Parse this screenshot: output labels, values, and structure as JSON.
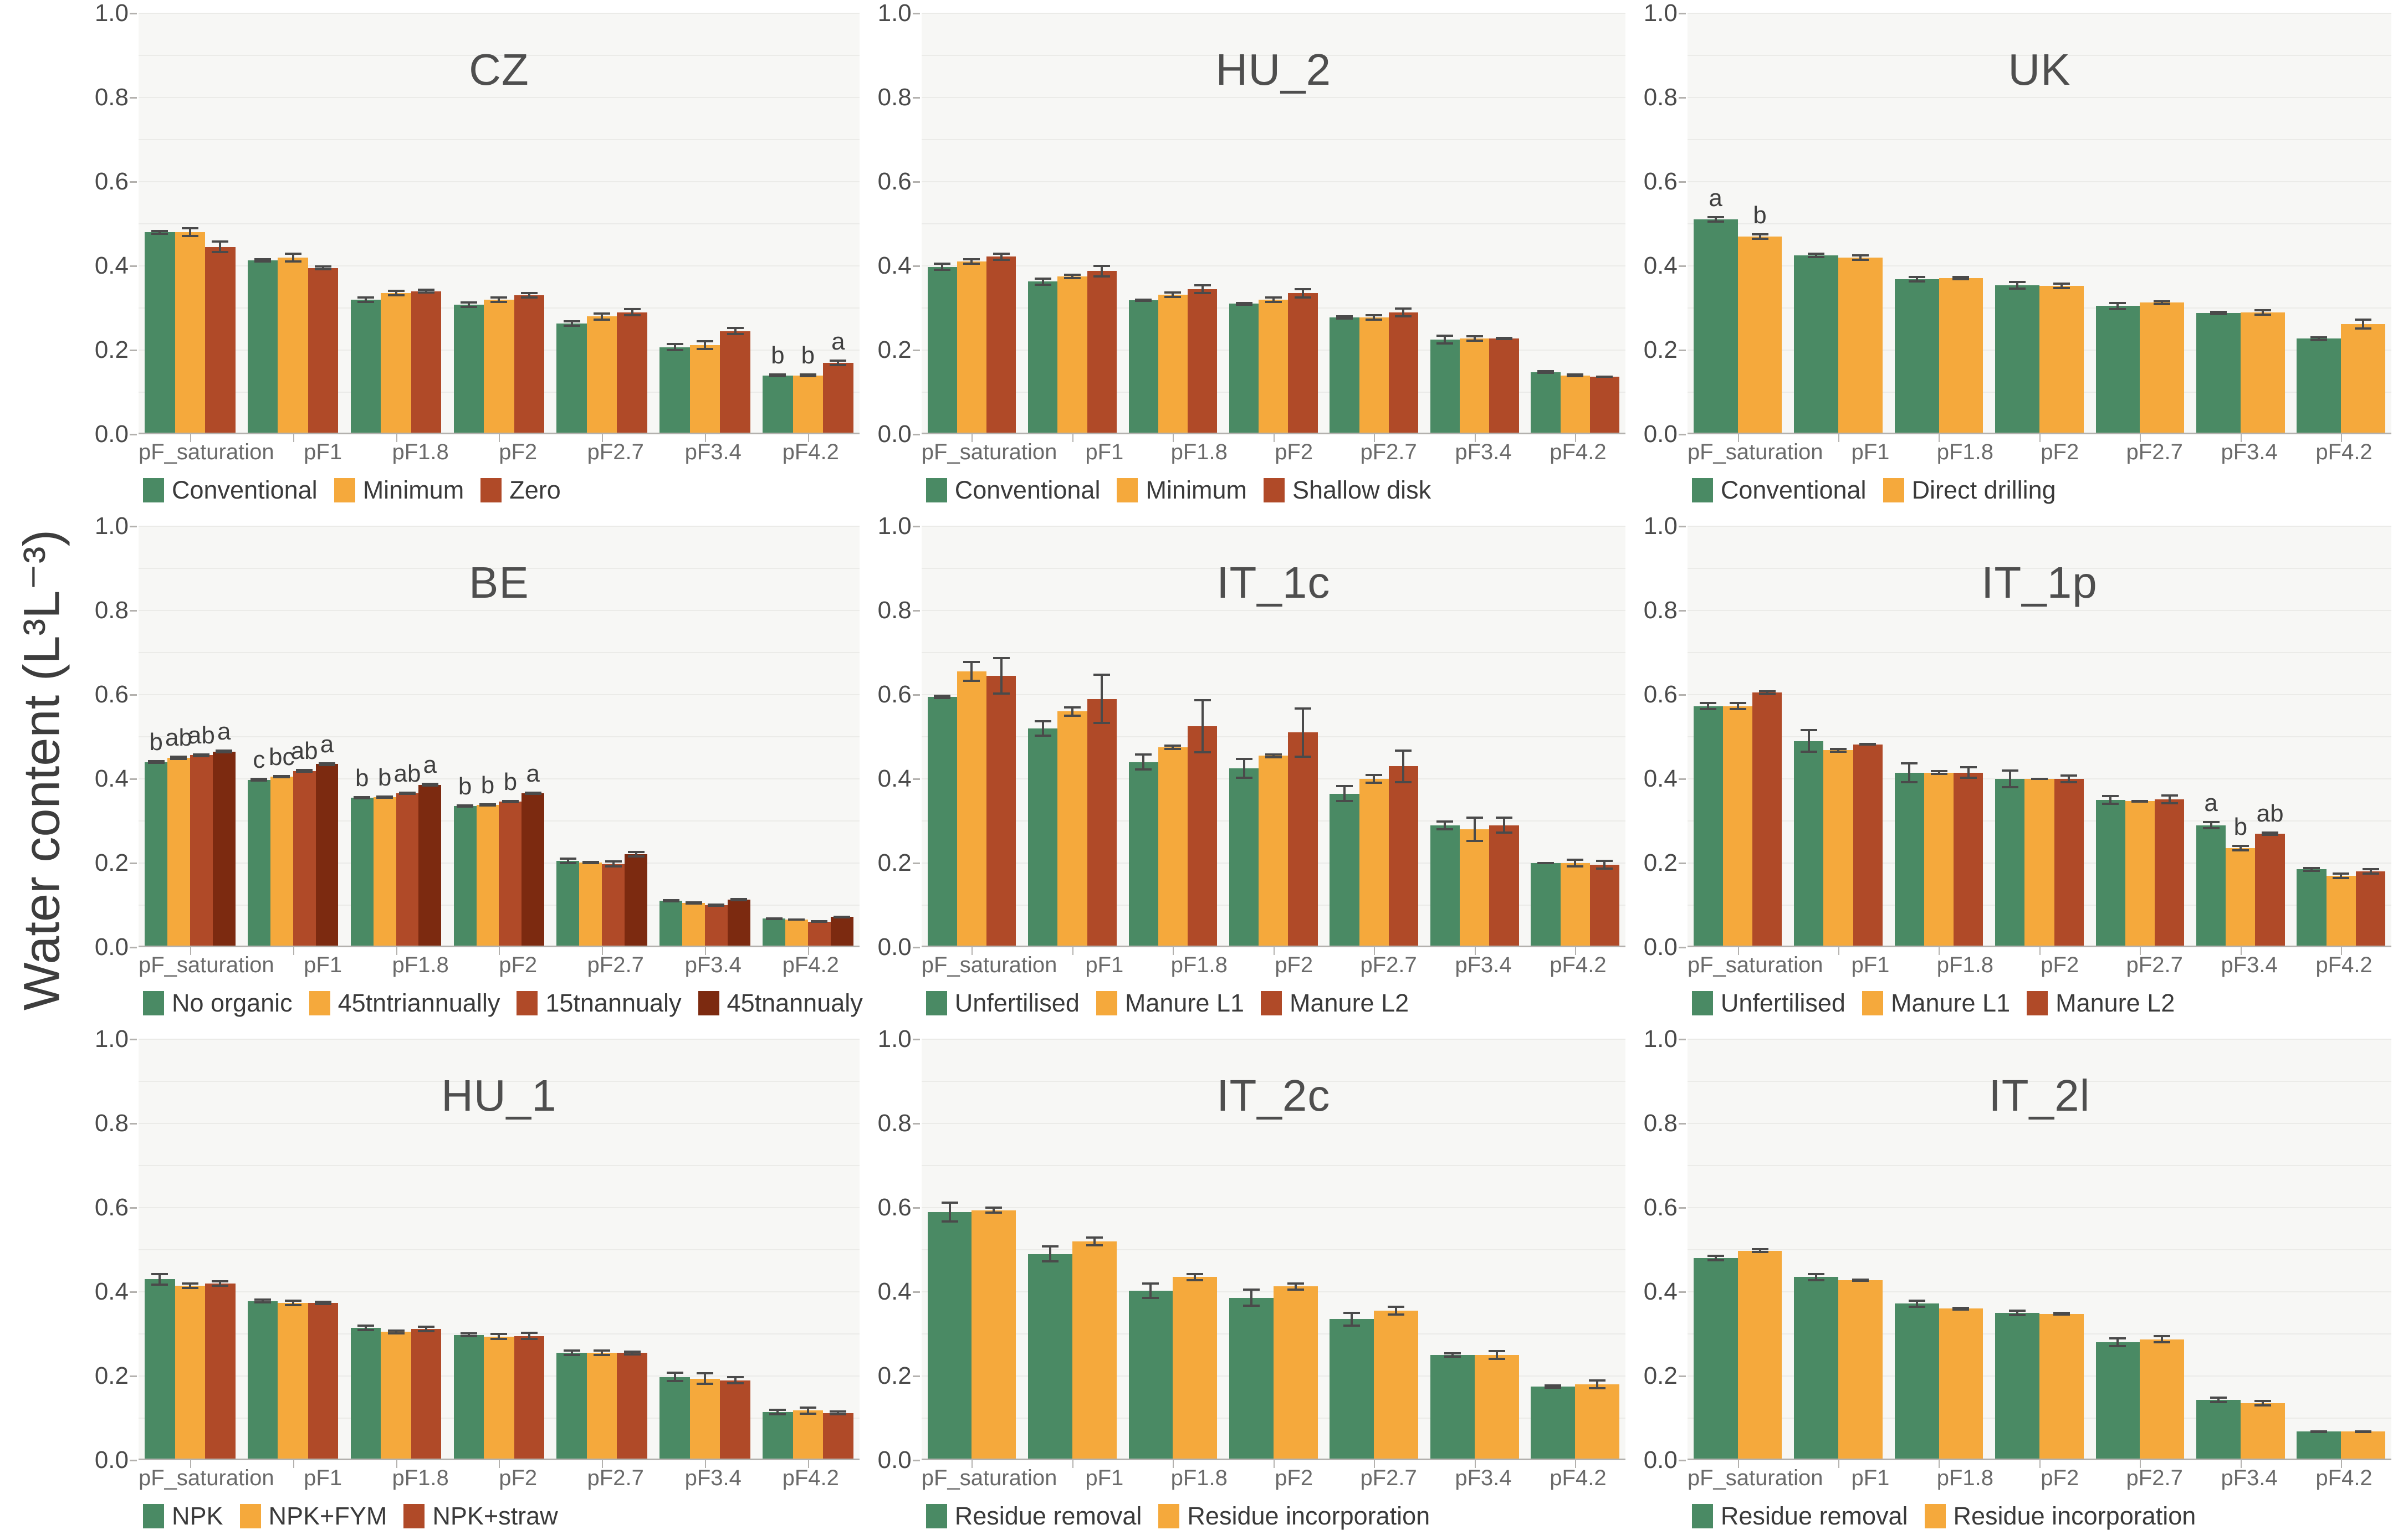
{
  "ylabel": "Water content (L³L⁻³)",
  "palette": {
    "green": "#4a8a64",
    "orange": "#f5a93c",
    "red": "#b04a28",
    "darkred": "#7c2a10"
  },
  "axis": {
    "yticks": [
      "1.0",
      "0.8",
      "0.6",
      "0.4",
      "0.2",
      "0.0"
    ],
    "ytick_values": [
      1.0,
      0.8,
      0.6,
      0.4,
      0.2,
      0.0
    ],
    "grid_step": 0.1
  },
  "chart_data": {
    "type": "bar",
    "categories": [
      "pF_saturation",
      "pF1",
      "pF1.8",
      "pF2",
      "pF2.7",
      "pF3.4",
      "pF4.2"
    ],
    "ylim": [
      0,
      1
    ],
    "ylabel": "Water content (L³L⁻³)",
    "grid": true,
    "legend_position": "bottom",
    "charts": [
      {
        "title": "CZ",
        "series": [
          {
            "name": "Conventional",
            "color": "green",
            "values": [
              0.48,
              0.413,
              0.32,
              0.308,
              0.263,
              0.207,
              0.14
            ],
            "errors": [
              0.006,
              0.005,
              0.008,
              0.008,
              0.008,
              0.01,
              0.005
            ]
          },
          {
            "name": "Minimum",
            "color": "orange",
            "values": [
              0.48,
              0.42,
              0.335,
              0.32,
              0.28,
              0.212,
              0.14
            ],
            "errors": [
              0.012,
              0.012,
              0.008,
              0.008,
              0.01,
              0.012,
              0.005
            ]
          },
          {
            "name": "Zero",
            "color": "red",
            "values": [
              0.445,
              0.395,
              0.34,
              0.33,
              0.29,
              0.245,
              0.17
            ],
            "errors": [
              0.015,
              0.006,
              0.006,
              0.008,
              0.01,
              0.01,
              0.008
            ]
          }
        ],
        "letters": [
          null,
          null,
          null,
          null,
          null,
          null,
          [
            "b",
            "b",
            "a"
          ]
        ]
      },
      {
        "title": "HU_2",
        "series": [
          {
            "name": "Conventional",
            "color": "green",
            "values": [
              0.398,
              0.363,
              0.318,
              0.31,
              0.278,
              0.225,
              0.148
            ],
            "errors": [
              0.01,
              0.01,
              0.004,
              0.005,
              0.005,
              0.012,
              0.005
            ]
          },
          {
            "name": "Minimum",
            "color": "orange",
            "values": [
              0.41,
              0.375,
              0.332,
              0.32,
              0.278,
              0.228,
              0.14
            ],
            "errors": [
              0.008,
              0.006,
              0.008,
              0.008,
              0.008,
              0.008,
              0.005
            ]
          },
          {
            "name": "Shallow disk",
            "color": "red",
            "values": [
              0.422,
              0.388,
              0.345,
              0.335,
              0.29,
              0.228,
              0.137
            ],
            "errors": [
              0.01,
              0.015,
              0.012,
              0.012,
              0.012,
              0.004,
              0.003
            ]
          }
        ],
        "letters": [
          null,
          null,
          null,
          null,
          null,
          null,
          null
        ]
      },
      {
        "title": "UK",
        "series": [
          {
            "name": "Conventional",
            "color": "green",
            "values": [
              0.51,
              0.425,
              0.368,
              0.354,
              0.305,
              0.288,
              0.227
            ],
            "errors": [
              0.008,
              0.006,
              0.008,
              0.01,
              0.01,
              0.005,
              0.006
            ]
          },
          {
            "name": "Direct drilling",
            "color": "orange",
            "values": [
              0.47,
              0.42,
              0.371,
              0.353,
              0.313,
              0.29,
              0.262
            ],
            "errors": [
              0.008,
              0.008,
              0.005,
              0.008,
              0.006,
              0.008,
              0.013
            ]
          }
        ],
        "letters": [
          [
            "a",
            "b"
          ],
          null,
          null,
          null,
          null,
          null,
          null
        ]
      },
      {
        "title": "BE",
        "series": [
          {
            "name": "No organic",
            "color": "green",
            "values": [
              0.44,
              0.398,
              0.355,
              0.335,
              0.205,
              0.111,
              0.068
            ],
            "errors": [
              0.005,
              0.004,
              0.004,
              0.004,
              0.008,
              0.004,
              0.003
            ]
          },
          {
            "name": "45tntriannually",
            "color": "orange",
            "values": [
              0.45,
              0.405,
              0.356,
              0.338,
              0.201,
              0.105,
              0.066
            ],
            "errors": [
              0.005,
              0.004,
              0.004,
              0.004,
              0.004,
              0.004,
              0.003
            ]
          },
          {
            "name": "15tnannualy",
            "color": "red",
            "values": [
              0.456,
              0.419,
              0.366,
              0.346,
              0.198,
              0.1,
              0.061
            ],
            "errors": [
              0.005,
              0.005,
              0.004,
              0.004,
              0.008,
              0.004,
              0.003
            ]
          },
          {
            "name": "45tnannualy",
            "color": "darkred",
            "values": [
              0.465,
              0.435,
              0.386,
              0.366,
              0.221,
              0.113,
              0.072
            ],
            "errors": [
              0.005,
              0.005,
              0.005,
              0.004,
              0.008,
              0.004,
              0.003
            ]
          }
        ],
        "letters": [
          [
            "b",
            "ab",
            "ab",
            "a"
          ],
          [
            "c",
            "bc",
            "ab",
            "a"
          ],
          [
            "b",
            "b",
            "ab",
            "a"
          ],
          [
            "b",
            "b",
            "b",
            "a"
          ],
          null,
          null,
          null
        ]
      },
      {
        "title": "IT_1c",
        "series": [
          {
            "name": "Unfertilised",
            "color": "green",
            "values": [
              0.595,
              0.52,
              0.44,
              0.425,
              0.365,
              0.29,
              0.2
            ],
            "errors": [
              0.005,
              0.02,
              0.02,
              0.025,
              0.02,
              0.012,
              0.002
            ]
          },
          {
            "name": "Manure L1",
            "color": "orange",
            "values": [
              0.655,
              0.56,
              0.475,
              0.455,
              0.4,
              0.28,
              0.2
            ],
            "errors": [
              0.025,
              0.012,
              0.006,
              0.006,
              0.012,
              0.03,
              0.01
            ]
          },
          {
            "name": "Manure L2",
            "color": "red",
            "values": [
              0.645,
              0.59,
              0.525,
              0.51,
              0.43,
              0.29,
              0.196
            ],
            "errors": [
              0.045,
              0.06,
              0.065,
              0.06,
              0.04,
              0.02,
              0.012
            ]
          }
        ],
        "letters": [
          null,
          null,
          null,
          null,
          null,
          null,
          null
        ]
      },
      {
        "title": "IT_1p",
        "series": [
          {
            "name": "Unfertilised",
            "color": "green",
            "values": [
              0.573,
              0.49,
              0.415,
              0.4,
              0.35,
              0.29,
              0.185
            ],
            "errors": [
              0.01,
              0.028,
              0.025,
              0.022,
              0.012,
              0.01,
              0.006
            ]
          },
          {
            "name": "Manure L1",
            "color": "orange",
            "values": [
              0.573,
              0.468,
              0.415,
              0.4,
              0.347,
              0.235,
              0.17
            ],
            "errors": [
              0.01,
              0.006,
              0.006,
              0.003,
              0.003,
              0.008,
              0.008
            ]
          },
          {
            "name": "Manure L2",
            "color": "red",
            "values": [
              0.605,
              0.482,
              0.415,
              0.4,
              0.351,
              0.27,
              0.18
            ],
            "errors": [
              0.006,
              0.003,
              0.015,
              0.01,
              0.012,
              0.005,
              0.008
            ]
          }
        ],
        "letters": [
          null,
          null,
          null,
          null,
          null,
          [
            "a",
            "b",
            "ab"
          ],
          null
        ]
      },
      {
        "title": "HU_1",
        "series": [
          {
            "name": "NPK",
            "color": "green",
            "values": [
              0.43,
              0.378,
              0.315,
              0.298,
              0.255,
              0.198,
              0.115
            ],
            "errors": [
              0.015,
              0.006,
              0.008,
              0.006,
              0.008,
              0.012,
              0.008
            ]
          },
          {
            "name": "NPK+FYM",
            "color": "orange",
            "values": [
              0.415,
              0.374,
              0.305,
              0.294,
              0.255,
              0.194,
              0.118
            ],
            "errors": [
              0.008,
              0.008,
              0.006,
              0.008,
              0.008,
              0.015,
              0.01
            ]
          },
          {
            "name": "NPK+straw",
            "color": "red",
            "values": [
              0.42,
              0.374,
              0.312,
              0.295,
              0.255,
              0.19,
              0.112
            ],
            "errors": [
              0.008,
              0.005,
              0.008,
              0.01,
              0.006,
              0.01,
              0.006
            ]
          }
        ],
        "letters": [
          null,
          null,
          null,
          null,
          null,
          null,
          null
        ]
      },
      {
        "title": "IT_2c",
        "series": [
          {
            "name": "Residue removal",
            "color": "green",
            "values": [
              0.59,
              0.49,
              0.403,
              0.386,
              0.335,
              0.25,
              0.175
            ],
            "errors": [
              0.025,
              0.02,
              0.02,
              0.022,
              0.018,
              0.006,
              0.005
            ]
          },
          {
            "name": "Residue incorporation",
            "color": "orange",
            "values": [
              0.594,
              0.52,
              0.435,
              0.413,
              0.355,
              0.25,
              0.18
            ],
            "errors": [
              0.008,
              0.012,
              0.01,
              0.01,
              0.012,
              0.012,
              0.012
            ]
          }
        ],
        "letters": [
          null,
          null,
          null,
          null,
          null,
          null,
          null
        ]
      },
      {
        "title": "IT_2l",
        "series": [
          {
            "name": "Residue removal",
            "color": "green",
            "values": [
              0.48,
              0.435,
              0.372,
              0.35,
              0.28,
              0.143,
              0.068
            ],
            "errors": [
              0.008,
              0.01,
              0.01,
              0.008,
              0.012,
              0.008,
              0.003
            ]
          },
          {
            "name": "Residue incorporation",
            "color": "orange",
            "values": [
              0.498,
              0.428,
              0.36,
              0.348,
              0.287,
              0.135,
              0.068
            ],
            "errors": [
              0.006,
              0.004,
              0.005,
              0.004,
              0.01,
              0.008,
              0.003
            ]
          }
        ],
        "letters": [
          null,
          null,
          null,
          null,
          null,
          null,
          null
        ]
      }
    ]
  }
}
